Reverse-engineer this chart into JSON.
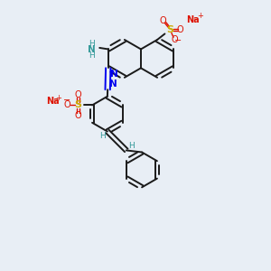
{
  "bg_color": "#e8eef5",
  "bond_color": "#1a1a1a",
  "azo_color": "#0000ee",
  "S_color": "#ccaa00",
  "O_color": "#dd1100",
  "Na_color": "#dd1100",
  "NH_color": "#339999",
  "figsize": [
    3.0,
    3.0
  ],
  "dpi": 100,
  "xlim": [
    0,
    10
  ],
  "ylim": [
    0,
    10
  ]
}
